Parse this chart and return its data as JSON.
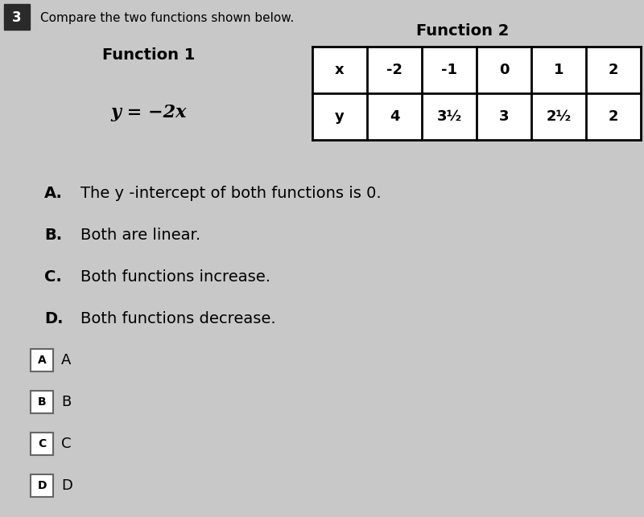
{
  "question_number": "3",
  "question_text": "Compare the two functions shown below.",
  "function1_label": "Function 1",
  "function1_eq": "y = −2x",
  "function2_label": "Function 2",
  "table_x_header": "x",
  "table_y_header": "y",
  "table_x_values": [
    "-2",
    "-1",
    "0",
    "1",
    "2"
  ],
  "table_y_values": [
    "4",
    "3½",
    "3",
    "2½",
    "2"
  ],
  "choices": [
    {
      "letter": "A.",
      "text": "The y -intercept of both functions is 0."
    },
    {
      "letter": "B.",
      "text": "Both are linear."
    },
    {
      "letter": "C.",
      "text": "Both functions increase."
    },
    {
      "letter": "D.",
      "text": "Both functions decrease."
    }
  ],
  "answer_buttons": [
    "A",
    "B",
    "C",
    "D"
  ],
  "bg_color": "#c8c8c8",
  "text_color": "#000000",
  "num_box_color": "#2a2a2a",
  "table_line_color": "#000000"
}
